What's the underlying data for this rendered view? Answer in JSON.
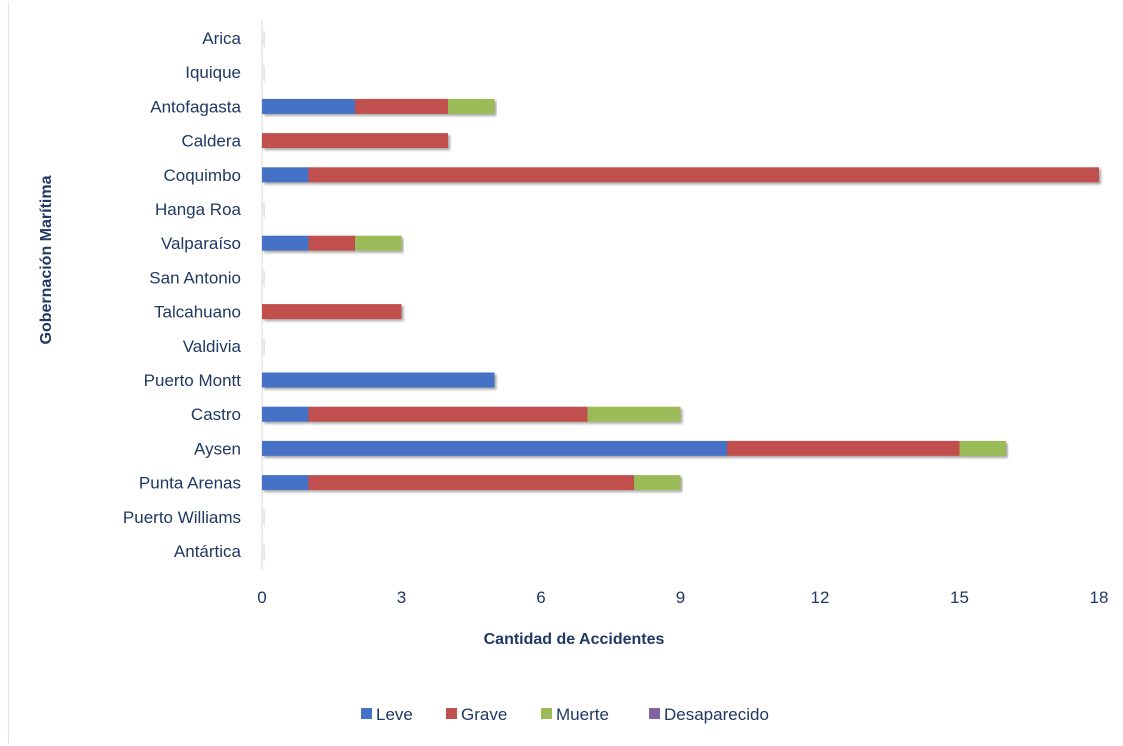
{
  "chart_data": {
    "type": "bar",
    "orientation": "horizontal",
    "stacked": true,
    "categories": [
      "Arica",
      "Iquique",
      "Antofagasta",
      "Caldera",
      "Coquimbo",
      "Hanga Roa",
      "Valparaíso",
      "San Antonio",
      "Talcahuano",
      "Valdivia",
      "Puerto Montt",
      "Castro",
      "Aysen",
      "Punta Arenas",
      "Puerto Williams",
      "Antártica"
    ],
    "series": [
      {
        "name": "Leve",
        "color": "#4472c4",
        "values": [
          0,
          0,
          2,
          0,
          1,
          0,
          1,
          0,
          0,
          0,
          5,
          1,
          10,
          1,
          0,
          0
        ]
      },
      {
        "name": "Grave",
        "color": "#c0504d",
        "values": [
          0,
          0,
          2,
          4,
          17,
          0,
          1,
          0,
          3,
          0,
          0,
          6,
          5,
          7,
          0,
          0
        ]
      },
      {
        "name": "Muerte",
        "color": "#9bbb59",
        "values": [
          0,
          0,
          1,
          0,
          0,
          0,
          1,
          0,
          0,
          0,
          0,
          2,
          1,
          1,
          0,
          0
        ]
      },
      {
        "name": "Desaparecido",
        "color": "#8064a2",
        "values": [
          0,
          0,
          0,
          0,
          0,
          0,
          0,
          0,
          0,
          0,
          0,
          0,
          0,
          0,
          0,
          0
        ]
      }
    ],
    "xlabel": "Cantidad de Accidentes",
    "ylabel": "Gobernación Marítima",
    "xlim": [
      0,
      18
    ],
    "xticks": [
      0,
      3,
      6,
      9,
      12,
      15,
      18
    ],
    "xtick_labels": [
      "0",
      "3",
      "6",
      "9",
      "12",
      "15",
      "18"
    ],
    "grid": false,
    "legend_position": "bottom"
  }
}
